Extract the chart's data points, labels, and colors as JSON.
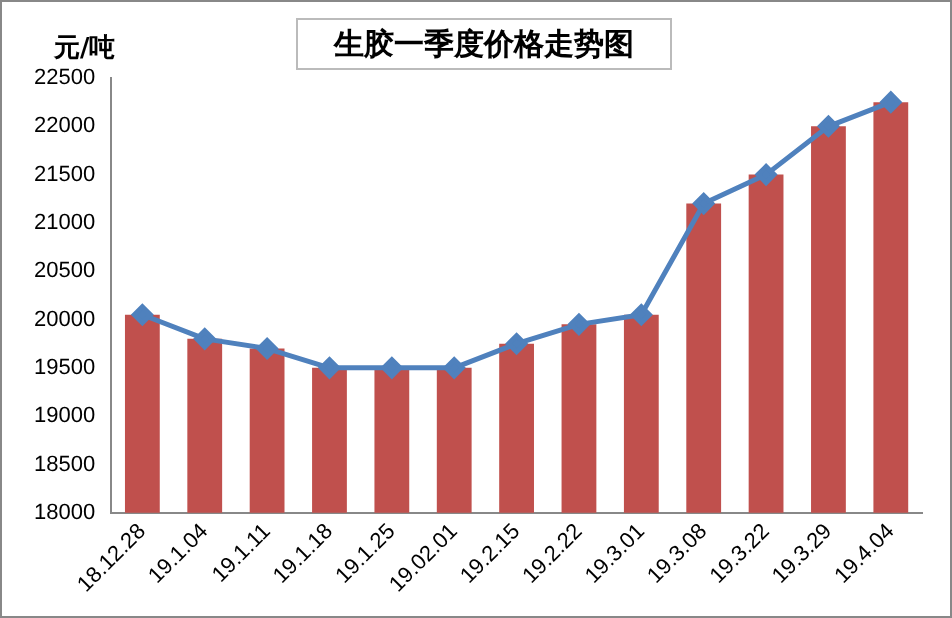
{
  "chart_data": {
    "type": "bar",
    "title": "生胶一季度价格走势图",
    "ylabel": "元/吨",
    "categories": [
      "18.12.28",
      "19.1.04",
      "19.1.11",
      "19.1.18",
      "19.1.25",
      "19.02.01",
      "19.2.15",
      "19.2.22",
      "19.3.01",
      "19.3.08",
      "19.3.22",
      "19.3.29",
      "19.4.04"
    ],
    "series": [
      {
        "color": "#c0504d",
        "values": [
          20050,
          19800,
          19700,
          19500,
          19500,
          19500,
          19750,
          19950,
          20050,
          21200,
          21500,
          22000,
          22250
        ]
      },
      {
        "type": "line",
        "color": "#4f81bd",
        "values": [
          20050,
          19800,
          19700,
          19500,
          19500,
          19500,
          19750,
          19950,
          20050,
          21200,
          21500,
          22000,
          22250
        ]
      }
    ],
    "ylim": [
      18000,
      22500
    ],
    "yticks": [
      18000,
      18500,
      19000,
      19500,
      20000,
      20500,
      21000,
      21500,
      22000,
      22500
    ],
    "grid": false,
    "legend": false,
    "marker": "diamond",
    "line_style": "solid"
  }
}
